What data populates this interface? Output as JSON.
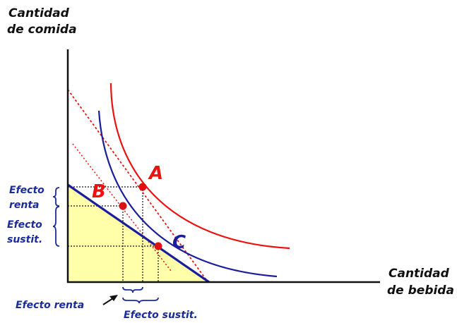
{
  "axes": {
    "y_label_line1": "Cantidad",
    "y_label_line2": "de comida",
    "x_label_line1": "Cantidad",
    "x_label_line2": "de bebida"
  },
  "points": {
    "a": "A",
    "b": "B",
    "c": "C"
  },
  "effects": {
    "income_y_line1": "Efecto",
    "income_y_line2": "renta",
    "subst_y_line1": "Efecto",
    "subst_y_line2": "sustit.",
    "income_x": "Efecto renta",
    "subst_x": "Efecto sustit."
  },
  "colors": {
    "red": "#ee1111",
    "blue": "#1a1e9c",
    "label_blue": "#1b2b9a",
    "budget_fill": "#ffffaa",
    "axis": "#111111"
  }
}
